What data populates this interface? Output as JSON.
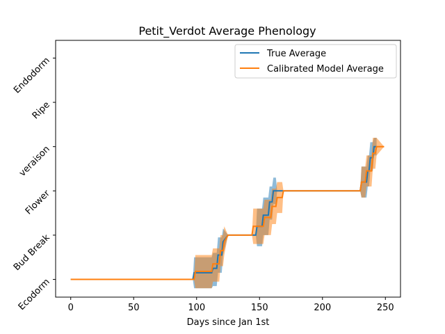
{
  "chart_data": {
    "type": "line",
    "title": "Petit_Verdot Average Phenology",
    "xlabel": "Days since Jan 1st",
    "ylabel": "",
    "xlim": [
      -12,
      262
    ],
    "ylim": [
      -0.4,
      5.4
    ],
    "x_ticks": [
      0,
      50,
      100,
      150,
      200,
      250
    ],
    "y_ticks": [
      0,
      1,
      2,
      3,
      4,
      5
    ],
    "y_tick_labels": [
      "Ecodorm",
      "Bud Break",
      "Flower",
      "veraison",
      "Ripe",
      "Endodorm"
    ],
    "grid": false,
    "legend_position": "top-right",
    "series": [
      {
        "name": "True Average",
        "color": "#1f77b4",
        "band_color": "#1f77b4",
        "x": [
          0,
          97,
          98,
          112,
          113,
          116,
          117,
          120,
          121,
          125,
          143,
          147,
          148,
          152,
          153,
          157,
          158,
          160,
          161,
          163,
          164,
          230,
          231,
          235,
          236,
          237,
          238,
          240,
          241,
          243
        ],
        "y": [
          0,
          0,
          0.15,
          0.15,
          0.25,
          0.25,
          0.55,
          0.55,
          0.85,
          1.0,
          1.0,
          1.0,
          1.2,
          1.2,
          1.45,
          1.45,
          1.75,
          1.75,
          2.0,
          2.0,
          2.0,
          2.0,
          2.2,
          2.2,
          2.45,
          2.45,
          2.75,
          2.75,
          3.0,
          3.0
        ],
        "band_lower": [
          0,
          0,
          -0.2,
          -0.2,
          -0.15,
          -0.15,
          0.15,
          0.15,
          0.55,
          1.0,
          1.0,
          1.0,
          0.75,
          0.75,
          1.0,
          1.0,
          1.35,
          1.35,
          1.7,
          1.7,
          2.0,
          2.0,
          1.85,
          1.85,
          2.1,
          2.1,
          2.45,
          2.45,
          2.8,
          2.8
        ],
        "band_upper": [
          0,
          0,
          0.5,
          0.5,
          0.6,
          0.6,
          0.95,
          0.95,
          1.15,
          1.0,
          1.0,
          1.0,
          1.6,
          1.6,
          1.85,
          1.85,
          2.1,
          2.1,
          2.3,
          2.3,
          2.0,
          2.0,
          2.55,
          2.55,
          2.8,
          2.8,
          3.1,
          3.1,
          3.2,
          3.2
        ]
      },
      {
        "name": "Calibrated Model Average",
        "color": "#ff7f0e",
        "band_color": "#ff7f0e",
        "x": [
          0,
          98,
          99,
          112,
          113,
          118,
          119,
          121,
          122,
          125,
          143,
          144,
          145,
          153,
          154,
          159,
          160,
          163,
          164,
          168,
          169,
          230,
          231,
          234,
          235,
          239,
          240,
          242,
          243,
          249
        ],
        "y": [
          0,
          0,
          0.18,
          0.18,
          0.35,
          0.35,
          0.65,
          0.65,
          0.85,
          1.0,
          1.0,
          1.0,
          1.2,
          1.2,
          1.4,
          1.4,
          1.65,
          1.65,
          1.85,
          1.85,
          2.0,
          2.0,
          2.2,
          2.2,
          2.45,
          2.45,
          2.85,
          2.85,
          3.0,
          3.0
        ],
        "band_lower": [
          0,
          0,
          -0.2,
          -0.2,
          -0.05,
          -0.05,
          0.3,
          0.3,
          0.55,
          1.0,
          1.0,
          1.0,
          0.8,
          0.8,
          1.0,
          1.0,
          1.25,
          1.25,
          1.5,
          1.5,
          2.0,
          2.0,
          1.85,
          1.85,
          2.1,
          2.1,
          2.5,
          2.5,
          2.8,
          3.0
        ],
        "band_upper": [
          0,
          0,
          0.55,
          0.55,
          0.7,
          0.7,
          1.0,
          1.0,
          1.2,
          1.0,
          1.0,
          1.0,
          1.6,
          1.6,
          1.8,
          1.8,
          2.05,
          2.05,
          2.2,
          2.2,
          2.0,
          2.0,
          2.55,
          2.55,
          2.8,
          2.8,
          3.2,
          3.2,
          3.2,
          3.0
        ]
      }
    ]
  }
}
